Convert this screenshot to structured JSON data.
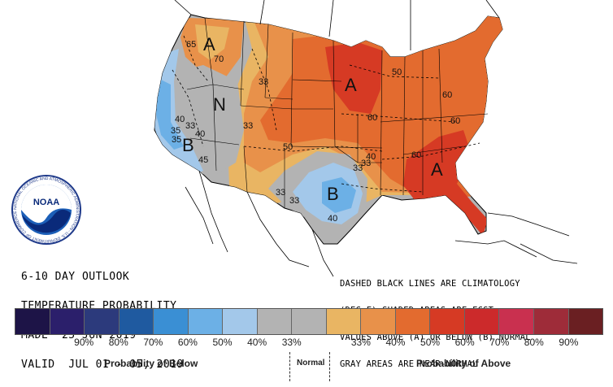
{
  "title_block": {
    "line1": "6-10 DAY OUTLOOK",
    "line2": "TEMPERATURE PROBABILITY",
    "line3": "MADE  25 JUN 2019",
    "line4": "VALID  JUL 01 - 05, 2019"
  },
  "notes": {
    "line1": "DASHED BLACK LINES ARE CLIMATOLOGY",
    "line2": "(DEG F) SHADED AREAS ARE FCST",
    "line3": "VALUES ABOVE (A) OR BELOW (B) NORMAL",
    "line4": "GRAY AREAS ARE NEAR-NORMAL"
  },
  "logo": {
    "text": "NOAA",
    "ring_text": "NATIONAL OCEANIC AND ATMOSPHERIC ADMINISTRATION - U.S. DEPARTMENT OF COMMERCE"
  },
  "map": {
    "category_letters": [
      "A",
      "A",
      "A",
      "N",
      "B",
      "B"
    ],
    "contour_labels": [
      "65",
      "70",
      "33",
      "40",
      "33",
      "35",
      "40",
      "45",
      "35",
      "33",
      "50",
      "33",
      "33",
      "40",
      "40",
      "33",
      "60",
      "60",
      "60",
      "50",
      "60",
      "33"
    ]
  },
  "legend": {
    "colors": [
      "#1d1447",
      "#2b1f6b",
      "#2c3a7c",
      "#1f5aa0",
      "#3a8fd4",
      "#6cb0e6",
      "#a3c8ea",
      "#b3b3b3",
      "#b3b3b3",
      "#e9b563",
      "#e8914a",
      "#e36b2f",
      "#d63a24",
      "#cc2a2b",
      "#c9304f",
      "#9e2c39",
      "#6a1f22"
    ],
    "ticks": [
      "90%",
      "80%",
      "70%",
      "60%",
      "50%",
      "40%",
      "33%",
      "33%",
      "40%",
      "50%",
      "60%",
      "70%",
      "80%",
      "90%"
    ],
    "caption_below": "Probability of Below",
    "caption_normal": "Normal",
    "caption_above": "Probability of Above"
  }
}
